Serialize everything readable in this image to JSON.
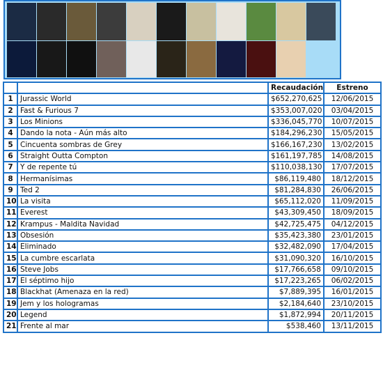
{
  "table": {
    "header": {
      "gross": "Recaudación",
      "release": "Estreno"
    },
    "rows": [
      [
        1,
        "Jurassic World",
        "$652,270,625",
        "12/06/2015"
      ],
      [
        2,
        "Fast & Furious 7",
        "$353,007,020",
        "03/04/2015"
      ],
      [
        3,
        "Los Minions",
        "$336,045,770",
        "10/07/2015"
      ],
      [
        4,
        "Dando la nota - Aún más alto",
        "$184,296,230",
        "15/05/2015"
      ],
      [
        5,
        "Cincuenta sombras de Grey",
        "$166,167,230",
        "13/02/2015"
      ],
      [
        6,
        "Straight Outta Compton",
        "$161,197,785",
        "14/08/2015"
      ],
      [
        7,
        "Y de repente tú",
        "$110,038,130",
        "17/07/2015"
      ],
      [
        8,
        "Hermanísimas",
        "$86,119,480",
        "18/12/2015"
      ],
      [
        9,
        "Ted 2",
        "$81,284,830",
        "26/06/2015"
      ],
      [
        10,
        "La visita",
        "$65,112,020",
        "11/09/2015"
      ],
      [
        11,
        "Everest",
        "$43,309,450",
        "18/09/2015"
      ],
      [
        12,
        "Krampus - Maldita Navidad",
        "$42,725,475",
        "04/12/2015"
      ],
      [
        13,
        "Obsesión",
        "$35,423,380",
        "23/01/2015"
      ],
      [
        14,
        "Eliminado",
        "$32,482,090",
        "17/04/2015"
      ],
      [
        15,
        "La cumbre escarlata",
        "$31,090,320",
        "16/10/2015"
      ],
      [
        16,
        "Steve Jobs",
        "$17,766,658",
        "09/10/2015"
      ],
      [
        17,
        "El séptimo hijo",
        "$17,223,265",
        "06/02/2015"
      ],
      [
        18,
        "Blackhat (Amenaza en la red)",
        "$7,889,395",
        "16/01/2015"
      ],
      [
        19,
        "Jem y los hologramas",
        "$2,184,640",
        "23/10/2015"
      ],
      [
        20,
        "Legend",
        "$1,872,994",
        "20/11/2015"
      ],
      [
        21,
        "Frente al mar",
        "$538,460",
        "13/11/2015"
      ]
    ]
  }
}
